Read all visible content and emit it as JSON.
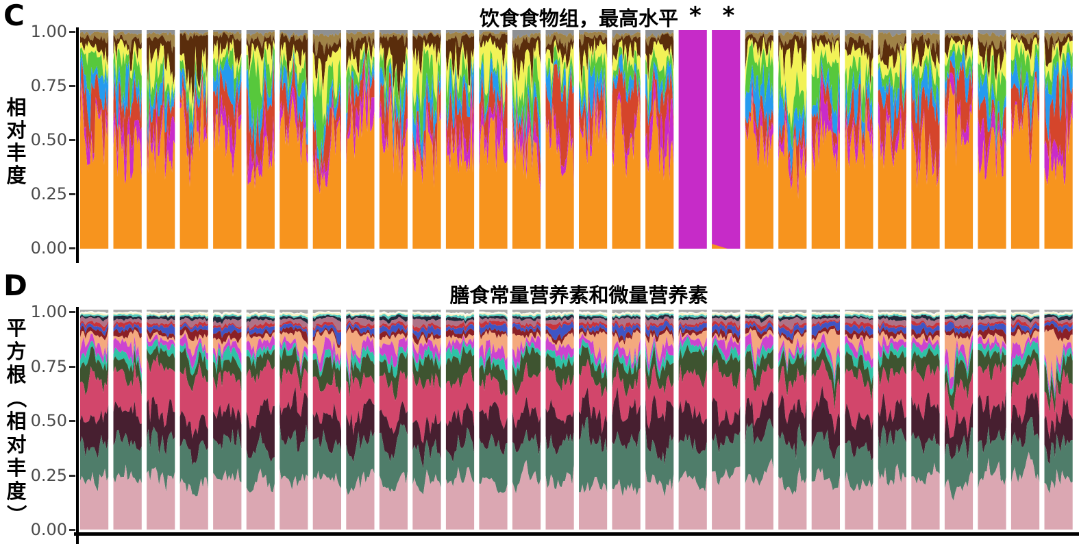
{
  "figure": {
    "background": "#ffffff",
    "description": "Two faceted stacked-area relative-abundance plots (30 sample panels each)"
  },
  "chart_data": [
    {
      "type": "area",
      "variant": "stacked-area-faceted",
      "corner_label": "C",
      "title": "饮食食物组，最高水平",
      "ylabel": "相对丰度",
      "yticks": [
        "1.00",
        "0.75",
        "0.50",
        "0.25",
        "0.00"
      ],
      "ylim": [
        0,
        1
      ],
      "xlabel": "",
      "n_panels": 30,
      "grid": false,
      "legend": "none",
      "axis_color": "#000000",
      "tick_label_color": "#4a4a4a",
      "panel_gap_color": "#ffffff",
      "series": [
        {
          "name": "orange",
          "color": "#F7941E",
          "mean_fraction": 0.52,
          "variability": 0.55
        },
        {
          "name": "magenta",
          "color": "#C92BC9",
          "mean_fraction": 0.05,
          "variability": 1.1
        },
        {
          "name": "red",
          "color": "#D5452B",
          "mean_fraction": 0.12,
          "variability": 1.0
        },
        {
          "name": "blue",
          "color": "#259BEE",
          "mean_fraction": 0.075,
          "variability": 1.0
        },
        {
          "name": "green",
          "color": "#57C83C",
          "mean_fraction": 0.075,
          "variability": 1.0
        },
        {
          "name": "yellow",
          "color": "#F2F257",
          "mean_fraction": 0.06,
          "variability": 1.0
        },
        {
          "name": "dark-brown",
          "color": "#5A2D0C",
          "mean_fraction": 0.063,
          "variability": 1.15
        },
        {
          "name": "dark-khaki",
          "color": "#A08347",
          "mean_fraction": 0.022,
          "variability": 0.9
        },
        {
          "name": "gray",
          "color": "#8E9092",
          "mean_fraction": 0.015,
          "variability": 0.5
        }
      ],
      "highlighted_panels": [
        {
          "index": 19,
          "color": "#C62BC8",
          "base_sliver": false
        },
        {
          "index": 20,
          "color": "#C62BC8",
          "base_sliver": true
        }
      ],
      "marks": {
        "symbol": "*",
        "above_panels": [
          19,
          20
        ]
      }
    },
    {
      "type": "area",
      "variant": "stacked-area-faceted",
      "corner_label": "D",
      "title": "膳食常量营养素和微量营养素",
      "ylabel": "平方根（相对丰度）",
      "yticks": [
        "1.00",
        "0.75",
        "0.50",
        "0.25",
        "0.00"
      ],
      "ylim": [
        0,
        1
      ],
      "xlabel": "",
      "n_panels": 30,
      "grid": false,
      "legend": "none",
      "axis_color": "#000000",
      "tick_label_color": "#4a4a4a",
      "panel_gap_color": "#ffffff",
      "has_bottom_axis_line": true,
      "series": [
        {
          "name": "rose-pink",
          "color": "#DBA7B2",
          "mean_fraction": 0.235,
          "variability": 0.22
        },
        {
          "name": "sea-green",
          "color": "#4F7D6A",
          "mean_fraction": 0.175,
          "variability": 0.28
        },
        {
          "name": "dark-plum",
          "color": "#471F30",
          "mean_fraction": 0.135,
          "variability": 0.33
        },
        {
          "name": "crimson",
          "color": "#D2466B",
          "mean_fraction": 0.155,
          "variability": 0.33
        },
        {
          "name": "dark-olive-green",
          "color": "#3E5430",
          "mean_fraction": 0.075,
          "variability": 0.38
        },
        {
          "name": "turquoise",
          "color": "#2FC2A6",
          "mean_fraction": 0.035,
          "variability": 0.45
        },
        {
          "name": "orchid",
          "color": "#CC44CF",
          "mean_fraction": 0.035,
          "variability": 0.55
        },
        {
          "name": "peach",
          "color": "#F4A97E",
          "mean_fraction": 0.03,
          "variability": 1.15
        },
        {
          "name": "dark-red",
          "color": "#8B2026",
          "mean_fraction": 0.02,
          "variability": 0.45
        },
        {
          "name": "royal-blue",
          "color": "#3F55C4",
          "mean_fraction": 0.022,
          "variability": 0.45
        },
        {
          "name": "bright-red",
          "color": "#C8333A",
          "mean_fraction": 0.013,
          "variability": 0.45
        },
        {
          "name": "mauve",
          "color": "#AF7287",
          "mean_fraction": 0.02,
          "variability": 0.45
        },
        {
          "name": "dark-navy",
          "color": "#232B3C",
          "mean_fraction": 0.012,
          "variability": 0.4
        },
        {
          "name": "light-teal",
          "color": "#52C8BC",
          "mean_fraction": 0.007,
          "variability": 0.4
        },
        {
          "name": "cream",
          "color": "#F4F3C3",
          "mean_fraction": 0.007,
          "variability": 0.35
        },
        {
          "name": "white",
          "color": "#FCFCF6",
          "mean_fraction": 0.006,
          "variability": 0.3
        },
        {
          "name": "gray",
          "color": "#ABABAB",
          "mean_fraction": 0.012,
          "variability": 0.35
        }
      ],
      "highlighted_panels": [],
      "marks": null
    }
  ]
}
